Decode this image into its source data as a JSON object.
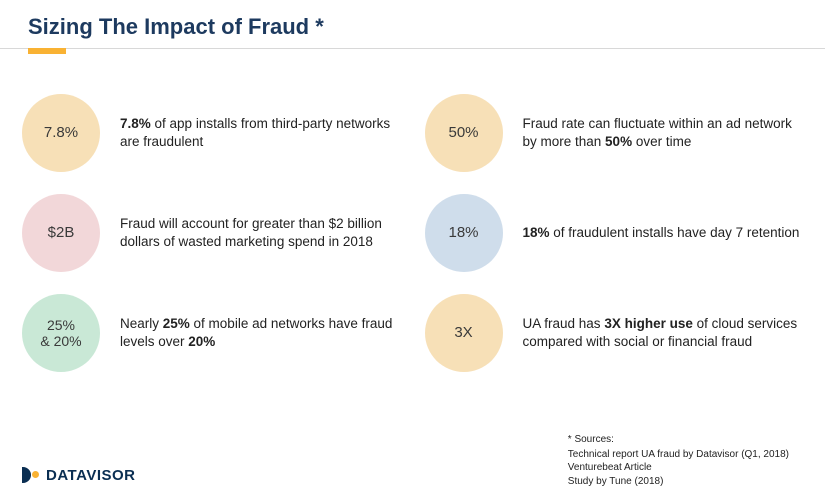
{
  "title": "Sizing The Impact of Fraud *",
  "accent_color": "#f9b233",
  "title_color": "#1d3a5f",
  "stats": [
    {
      "circle_text": "7.8%",
      "circle_bg": "#f7e0b7",
      "desc_html": "<b>7.8%</b> of app installs from third-party networks are fraudulent"
    },
    {
      "circle_text": "50%",
      "circle_bg": "#f7e0b7",
      "desc_html": "Fraud rate can fluctuate within an ad network by more than <b>50%</b> over time"
    },
    {
      "circle_text": "$2B",
      "circle_bg": "#f2d7d9",
      "desc_html": "Fraud will account for greater than $2 billion dollars of wasted marketing spend in 2018"
    },
    {
      "circle_text": "18%",
      "circle_bg": "#cfddeb",
      "desc_html": "<b>18%</b> of fraudulent installs have day 7 retention"
    },
    {
      "circle_text": "25%\n& 20%",
      "circle_bg": "#c9e8d6",
      "desc_html": "Nearly <b>25%</b> of mobile ad networks have fraud levels over <b>20%</b>"
    },
    {
      "circle_text": "3X",
      "circle_bg": "#f7e0b7",
      "desc_html": "UA fraud has <b>3X higher use</b> of  cloud services compared with social or financial fraud"
    }
  ],
  "logo_text": "DATAVISOR",
  "sources": {
    "header": "* Sources:",
    "lines": [
      "Technical report UA fraud by Datavisor (Q1, 2018)",
      "Venturebeat Article",
      "Study by Tune (2018)"
    ]
  }
}
